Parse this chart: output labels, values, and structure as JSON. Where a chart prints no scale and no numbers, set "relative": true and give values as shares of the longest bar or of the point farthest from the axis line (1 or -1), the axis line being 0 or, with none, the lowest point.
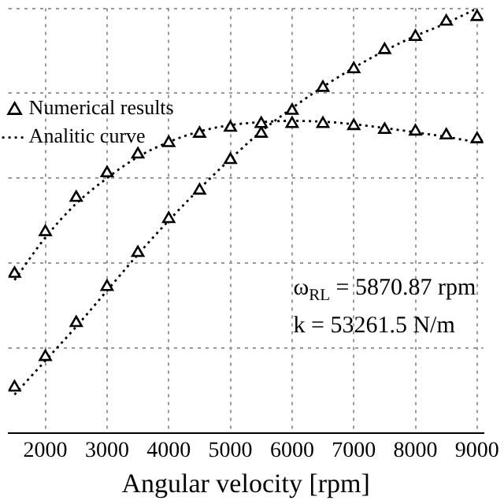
{
  "chart_data": {
    "type": "scatter",
    "xlabel": "Angular velocity [rpm]",
    "relative": true,
    "xlim": [
      1400,
      9100
    ],
    "xticks": [
      2000,
      3000,
      4000,
      5000,
      6000,
      7000,
      8000,
      9000
    ],
    "grid": true,
    "legend": "top left",
    "annotations": [
      "ω$_{RL}$ = 5870.87 rpm",
      "k = 53261.5 N/m"
    ],
    "x": [
      1500,
      2000,
      2500,
      3000,
      3500,
      4000,
      4500,
      5000,
      5500,
      6000,
      6500,
      7000,
      7500,
      8000,
      8500,
      9000
    ],
    "series": [
      {
        "name": "Numerical results",
        "type": "scatter",
        "marker": "triangle",
        "color": "#000000",
        "values": [
          0.375,
          0.473,
          0.554,
          0.612,
          0.656,
          0.683,
          0.705,
          0.719,
          0.728,
          0.728,
          0.728,
          0.723,
          0.714,
          0.71,
          0.701,
          0.692
        ]
      },
      {
        "type": "scatter",
        "marker": "triangle",
        "color": "#000000",
        "values": [
          0.107,
          0.179,
          0.259,
          0.344,
          0.424,
          0.504,
          0.571,
          0.643,
          0.705,
          0.759,
          0.813,
          0.857,
          0.902,
          0.933,
          0.969,
          0.98
        ]
      },
      {
        "name": "Analitic curve",
        "type": "line",
        "marker": "none",
        "line_style": "dotted",
        "color": "#000000",
        "values": [
          0.36,
          0.46,
          0.54,
          0.6,
          0.65,
          0.685,
          0.71,
          0.725,
          0.732,
          0.735,
          0.733,
          0.727,
          0.718,
          0.708,
          0.697,
          0.685
        ]
      },
      {
        "type": "line",
        "marker": "none",
        "line_style": "dotted",
        "color": "#000000",
        "values": [
          0.09,
          0.17,
          0.25,
          0.335,
          0.42,
          0.5,
          0.575,
          0.645,
          0.71,
          0.765,
          0.815,
          0.86,
          0.9,
          0.935,
          0.965,
          1
        ]
      }
    ]
  }
}
